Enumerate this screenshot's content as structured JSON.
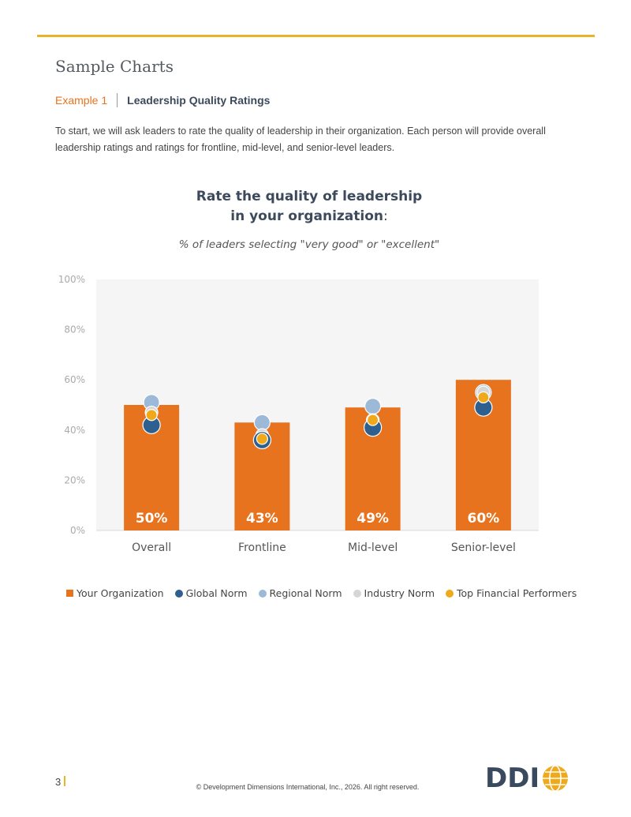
{
  "header": {
    "section_title": "Sample Charts",
    "example_label": "Example 1",
    "example_title": "Leadership Quality Ratings",
    "intro": "To start, we will ask leaders to rate the quality of leadership in their organization. Each person will provide overall leadership ratings and ratings for frontline, mid-level, and senior-level leaders."
  },
  "colors": {
    "accent_rule": "#e8b527",
    "your_org": "#e8731e",
    "global_norm": "#2d5f8f",
    "regional_norm": "#9db9d8",
    "industry_norm": "#d6d6d6",
    "top_financial": "#f0a91a",
    "plot_bg": "#f5f5f5"
  },
  "chart_data": {
    "type": "bar",
    "title_line1": "Rate the quality of leadership",
    "title_line2": "in your organization",
    "title_colon": ":",
    "subtitle": "% of leaders selecting \"very good\" or \"excellent\"",
    "categories": [
      "Overall",
      "Frontline",
      "Mid-level",
      "Senior-level"
    ],
    "ylim": [
      0,
      100
    ],
    "yticks": [
      "0%",
      "20%",
      "40%",
      "60%",
      "80%",
      "100%"
    ],
    "ytick_values": [
      0,
      20,
      40,
      60,
      80,
      100
    ],
    "grid": false,
    "legend_position": "bottom",
    "bar_series": {
      "name": "Your Organization",
      "values": [
        50,
        43,
        49,
        60
      ],
      "labels": [
        "50%",
        "43%",
        "49%",
        "60%"
      ]
    },
    "dot_series": [
      {
        "name": "Regional Norm",
        "values": [
          51,
          43,
          49.5,
          55
        ]
      },
      {
        "name": "Industry Norm",
        "values": [
          47,
          38,
          44,
          55
        ]
      },
      {
        "name": "Global Norm",
        "values": [
          42,
          36,
          41,
          49
        ]
      },
      {
        "name": "Top Financial Performers",
        "values": [
          46,
          36.5,
          44,
          53
        ]
      }
    ]
  },
  "legend": [
    {
      "label": "Your Organization",
      "shape": "square",
      "color_key": "your_org"
    },
    {
      "label": "Global Norm",
      "shape": "dot",
      "color_key": "global_norm"
    },
    {
      "label": "Regional Norm",
      "shape": "dot",
      "color_key": "regional_norm"
    },
    {
      "label": "Industry Norm",
      "shape": "dot",
      "color_key": "industry_norm"
    },
    {
      "label": "Top Financial Performers",
      "shape": "dot",
      "color_key": "top_financial"
    }
  ],
  "footer": {
    "page_number": "3",
    "copyright": "© Development Dimensions International, Inc., 2026.  All right reserved.",
    "logo_text": "DDI"
  }
}
